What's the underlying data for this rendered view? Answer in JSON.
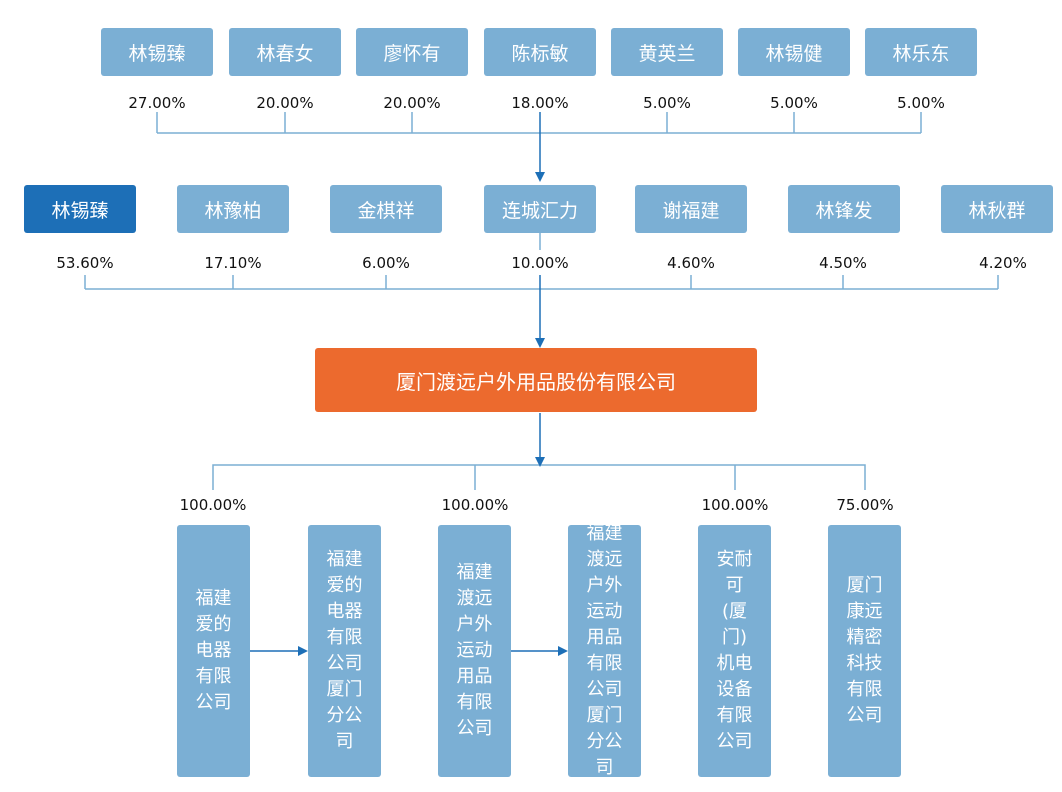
{
  "top_shareholders": [
    {
      "name": "林锡臻",
      "pct": "27.00%"
    },
    {
      "name": "林春女",
      "pct": "20.00%"
    },
    {
      "name": "廖怀有",
      "pct": "20.00%"
    },
    {
      "name": "陈标敏",
      "pct": "18.00%"
    },
    {
      "name": "黄英兰",
      "pct": "5.00%"
    },
    {
      "name": "林锡健",
      "pct": "5.00%"
    },
    {
      "name": "林乐东",
      "pct": "5.00%"
    }
  ],
  "shareholders": [
    {
      "name": "林锡臻",
      "pct": "53.60%",
      "highlight": true
    },
    {
      "name": "林豫柏",
      "pct": "17.10%"
    },
    {
      "name": "金棋祥",
      "pct": "6.00%"
    },
    {
      "name": "连城汇力",
      "pct": "10.00%"
    },
    {
      "name": "谢福建",
      "pct": "4.60%"
    },
    {
      "name": "林锋发",
      "pct": "4.50%"
    },
    {
      "name": "林秋群",
      "pct": "4.20%"
    }
  ],
  "company": "厦门渡远户外用品股份有限公司",
  "subsidiaries": [
    {
      "name": "福建爱的电器有限公司",
      "pct": "100.00%"
    },
    {
      "name": "福建爱的电器有限公司厦门分公司"
    },
    {
      "name": "福建渡远户外运动用品有限公司",
      "pct": "100.00%"
    },
    {
      "name": "福建渡远户外运动用品有限公司厦门分公司"
    },
    {
      "name": "安耐可(厦门)机电设备有限公司",
      "pct": "100.00%"
    },
    {
      "name": "厦门康远精密科技有限公司",
      "pct": "75.00%"
    }
  ],
  "colors": {
    "box": "#7bafd4",
    "highlight": "#1d6fb7",
    "company": "#ec6a2e",
    "line": "#7bafd4",
    "arrow": "#1d6fb7"
  }
}
